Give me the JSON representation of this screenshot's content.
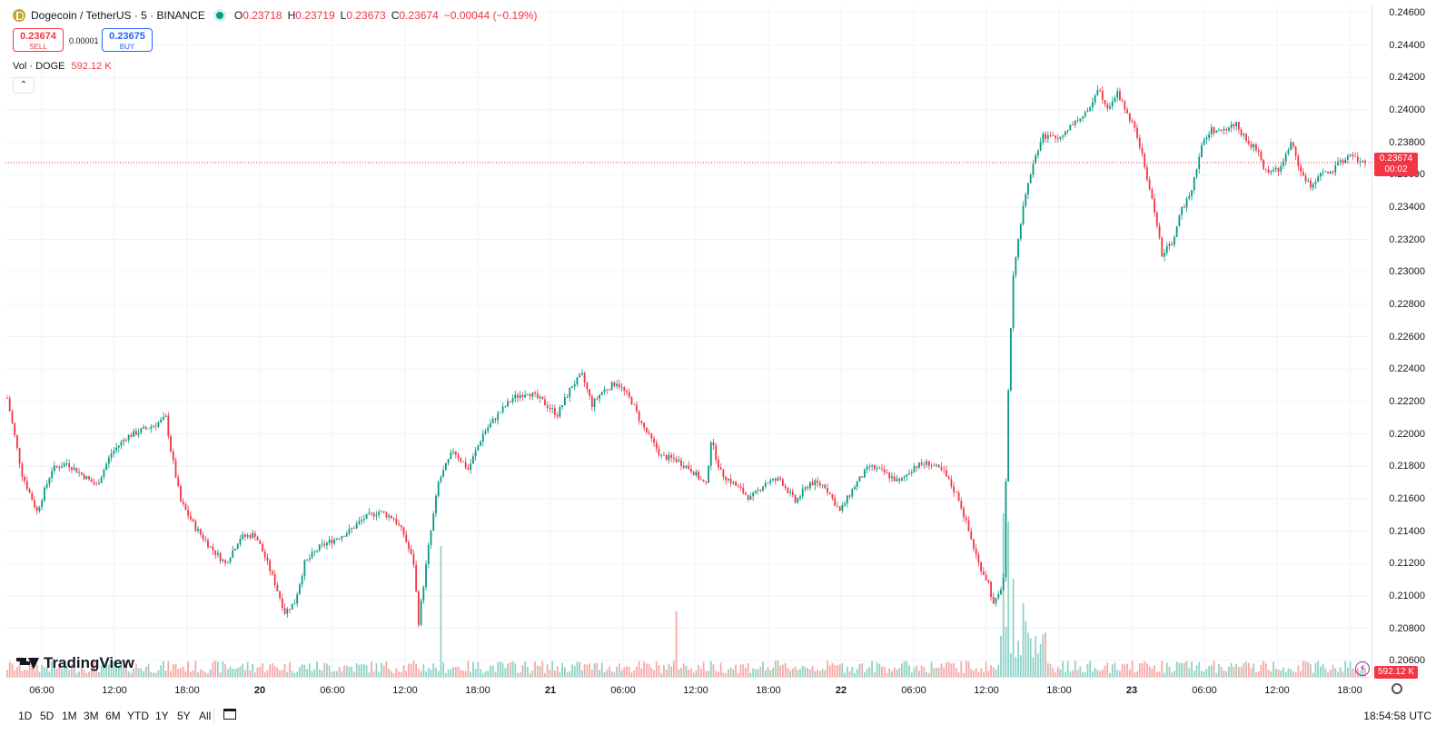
{
  "header": {
    "symbol": "Dogecoin / TetherUS · 5 · BINANCE",
    "open_label": "O",
    "open": "0.23718",
    "high_label": "H",
    "high": "0.23719",
    "low_label": "L",
    "low": "0.23673",
    "close_label": "C",
    "close": "0.23674",
    "change": "−0.00044 (−0.19%)"
  },
  "trade": {
    "sell_price": "0.23674",
    "sell_label": "SELL",
    "spread": "0.00001",
    "buy_price": "0.23675",
    "buy_label": "BUY"
  },
  "volume_legend": {
    "label": "Vol · DOGE",
    "value": "592.12 K"
  },
  "last_price_tag": {
    "price": "0.23674",
    "countdown": "00:02"
  },
  "volume_tag": "592.12 K",
  "logo_text": "TradingView",
  "colors": {
    "up": "#089981",
    "down": "#f23645",
    "grid": "#f0f3fa",
    "accent": "#2962ff"
  },
  "time_range_buttons": [
    "1D",
    "5D",
    "1M",
    "3M",
    "6M",
    "YTD",
    "1Y",
    "5Y",
    "All"
  ],
  "utc_clock": "18:54:58 UTC",
  "icons": {
    "calendar": "calendar-icon",
    "settings": "settings-icon",
    "flash": "flash-icon",
    "collapse": "chevron-up-icon"
  },
  "chart_data": {
    "type": "candlestick",
    "symbol": "DOGEUSDT",
    "interval": "5",
    "ylim": [
      0.205,
      0.2465
    ],
    "y_ticks": [
      "0.24600",
      "0.24400",
      "0.24200",
      "0.24000",
      "0.23800",
      "0.23600",
      "0.23400",
      "0.23200",
      "0.23000",
      "0.22800",
      "0.22600",
      "0.22400",
      "0.22200",
      "0.22000",
      "0.21800",
      "0.21600",
      "0.21400",
      "0.21200",
      "0.21000",
      "0.20800",
      "0.20600"
    ],
    "x_ticks": [
      {
        "label": "06:00",
        "bold": false
      },
      {
        "label": "12:00",
        "bold": false
      },
      {
        "label": "18:00",
        "bold": false
      },
      {
        "label": "20",
        "bold": true
      },
      {
        "label": "06:00",
        "bold": false
      },
      {
        "label": "12:00",
        "bold": false
      },
      {
        "label": "18:00",
        "bold": false
      },
      {
        "label": "21",
        "bold": true
      },
      {
        "label": "06:00",
        "bold": false
      },
      {
        "label": "12:00",
        "bold": false
      },
      {
        "label": "18:00",
        "bold": false
      },
      {
        "label": "22",
        "bold": true
      },
      {
        "label": "06:00",
        "bold": false
      },
      {
        "label": "12:00",
        "bold": false
      },
      {
        "label": "18:00",
        "bold": false
      },
      {
        "label": "23",
        "bold": true
      },
      {
        "label": "06:00",
        "bold": false
      },
      {
        "label": "12:00",
        "bold": false
      },
      {
        "label": "18:00",
        "bold": false
      }
    ],
    "price_path": [
      [
        0,
        0.2222
      ],
      [
        6,
        0.2175
      ],
      [
        12,
        0.2152
      ],
      [
        18,
        0.2178
      ],
      [
        24,
        0.2182
      ],
      [
        30,
        0.2175
      ],
      [
        36,
        0.2168
      ],
      [
        42,
        0.2188
      ],
      [
        48,
        0.2198
      ],
      [
        54,
        0.2202
      ],
      [
        60,
        0.2206
      ],
      [
        64,
        0.221
      ],
      [
        66,
        0.219
      ],
      [
        70,
        0.2158
      ],
      [
        76,
        0.2142
      ],
      [
        82,
        0.213
      ],
      [
        88,
        0.212
      ],
      [
        94,
        0.2136
      ],
      [
        100,
        0.2138
      ],
      [
        104,
        0.2124
      ],
      [
        108,
        0.2108
      ],
      [
        112,
        0.209
      ],
      [
        116,
        0.2096
      ],
      [
        120,
        0.212
      ],
      [
        126,
        0.213
      ],
      [
        132,
        0.2135
      ],
      [
        138,
        0.214
      ],
      [
        144,
        0.2148
      ],
      [
        150,
        0.2152
      ],
      [
        156,
        0.2148
      ],
      [
        160,
        0.2138
      ],
      [
        164,
        0.212
      ],
      [
        166,
        0.2084
      ],
      [
        170,
        0.213
      ],
      [
        174,
        0.217
      ],
      [
        180,
        0.219
      ],
      [
        186,
        0.2178
      ],
      [
        192,
        0.22
      ],
      [
        198,
        0.2212
      ],
      [
        204,
        0.2222
      ],
      [
        210,
        0.2226
      ],
      [
        216,
        0.222
      ],
      [
        222,
        0.2212
      ],
      [
        228,
        0.223
      ],
      [
        232,
        0.2236
      ],
      [
        236,
        0.2218
      ],
      [
        240,
        0.2226
      ],
      [
        246,
        0.2232
      ],
      [
        252,
        0.222
      ],
      [
        256,
        0.2206
      ],
      [
        260,
        0.2196
      ],
      [
        264,
        0.2186
      ],
      [
        270,
        0.2184
      ],
      [
        276,
        0.2178
      ],
      [
        282,
        0.2168
      ],
      [
        284,
        0.2196
      ],
      [
        288,
        0.2176
      ],
      [
        294,
        0.2168
      ],
      [
        300,
        0.216
      ],
      [
        306,
        0.217
      ],
      [
        312,
        0.2172
      ],
      [
        318,
        0.2158
      ],
      [
        324,
        0.217
      ],
      [
        330,
        0.2168
      ],
      [
        336,
        0.2152
      ],
      [
        342,
        0.2168
      ],
      [
        348,
        0.218
      ],
      [
        354,
        0.2176
      ],
      [
        360,
        0.217
      ],
      [
        366,
        0.218
      ],
      [
        372,
        0.2182
      ],
      [
        378,
        0.2176
      ],
      [
        384,
        0.216
      ],
      [
        388,
        0.214
      ],
      [
        392,
        0.212
      ],
      [
        396,
        0.2108
      ],
      [
        398,
        0.2094
      ],
      [
        400,
        0.21
      ],
      [
        402,
        0.211
      ],
      [
        404,
        0.2228
      ],
      [
        406,
        0.23
      ],
      [
        410,
        0.234
      ],
      [
        414,
        0.2368
      ],
      [
        418,
        0.2384
      ],
      [
        424,
        0.2382
      ],
      [
        430,
        0.2392
      ],
      [
        436,
        0.2398
      ],
      [
        440,
        0.2414
      ],
      [
        444,
        0.2402
      ],
      [
        448,
        0.241
      ],
      [
        452,
        0.2398
      ],
      [
        456,
        0.2384
      ],
      [
        460,
        0.2358
      ],
      [
        464,
        0.233
      ],
      [
        466,
        0.231
      ],
      [
        470,
        0.2318
      ],
      [
        474,
        0.2338
      ],
      [
        478,
        0.2352
      ],
      [
        482,
        0.2378
      ],
      [
        486,
        0.2388
      ],
      [
        490,
        0.2386
      ],
      [
        496,
        0.2392
      ],
      [
        500,
        0.238
      ],
      [
        504,
        0.2376
      ],
      [
        508,
        0.2362
      ],
      [
        514,
        0.2364
      ],
      [
        518,
        0.238
      ],
      [
        522,
        0.2362
      ],
      [
        526,
        0.2352
      ],
      [
        530,
        0.2362
      ],
      [
        534,
        0.236
      ],
      [
        538,
        0.2368
      ],
      [
        542,
        0.2372
      ],
      [
        546,
        0.2368
      ],
      [
        548,
        0.2367
      ]
    ],
    "volume_spikes": [
      {
        "i": 175,
        "v": 0.8
      },
      {
        "i": 270,
        "v": 0.4
      },
      {
        "i": 402,
        "v": 1.0
      },
      {
        "i": 404,
        "v": 0.95
      },
      {
        "i": 406,
        "v": 0.6
      },
      {
        "i": 410,
        "v": 0.45
      }
    ],
    "last_price": 0.23674
  }
}
